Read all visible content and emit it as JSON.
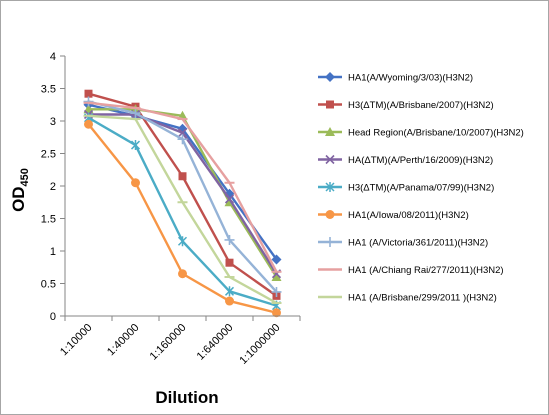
{
  "chart_data": {
    "type": "line",
    "categories": [
      "1:10000",
      "1:40000",
      "1:160000",
      "1:640000",
      "1:1000000"
    ],
    "xlabel": "Dilution",
    "ylabel_main": "OD",
    "ylabel_sub": "450",
    "ylim": [
      0,
      4
    ],
    "yticks": [
      "0",
      "0.5",
      "1",
      "1.5",
      "2",
      "2.5",
      "3",
      "3.5",
      "4"
    ],
    "grid": false,
    "legend_position": "right",
    "series": [
      {
        "name": "HA1(A/Wyoming/3/03)(H3N2)",
        "color": "#4472c4",
        "marker": "diamond",
        "values": [
          3.25,
          3.08,
          2.88,
          1.88,
          0.87
        ]
      },
      {
        "name": "H3(ΔTM)(A/Brisbane/2007)(H3N2)",
        "color": "#c0504d",
        "marker": "square",
        "values": [
          3.42,
          3.22,
          2.15,
          0.82,
          0.31
        ]
      },
      {
        "name": "Head Region(A/Brisbane/10/2007)(H3N2)",
        "color": "#9bbb59",
        "marker": "triangle",
        "values": [
          3.18,
          3.18,
          3.08,
          1.75,
          0.6
        ]
      },
      {
        "name": "HA(ΔTM)(A/Perth/16/2009)(H3N2)",
        "color": "#8064a2",
        "marker": "x",
        "values": [
          3.1,
          3.1,
          2.82,
          1.8,
          0.65
        ]
      },
      {
        "name": "H3(ΔTM)(A/Panama/07/99)(H3N2)",
        "color": "#4bacc6",
        "marker": "star",
        "values": [
          3.05,
          2.63,
          1.15,
          0.38,
          0.16
        ]
      },
      {
        "name": "HA1(A/Iowa/08/2011)(H3N2)",
        "color": "#f79646",
        "marker": "circle",
        "values": [
          2.95,
          2.05,
          0.65,
          0.23,
          0.05
        ]
      },
      {
        "name": "HA1 (A/Victoria/361/2011)(H3N2)",
        "color": "#95b3d7",
        "marker": "plus",
        "values": [
          3.3,
          3.12,
          2.72,
          1.17,
          0.37
        ]
      },
      {
        "name": "HA1 (A/Chiang Rai/277/2011)(H3N2)",
        "color": "#e6a0a0",
        "marker": "dash",
        "values": [
          3.28,
          3.2,
          3.03,
          2.05,
          0.68
        ]
      },
      {
        "name": "HA1 (A/Brisbane/299/2011 )(H3N2)",
        "color": "#c3d69b",
        "marker": "dash",
        "values": [
          3.08,
          3.03,
          1.75,
          0.6,
          0.2
        ]
      }
    ]
  }
}
